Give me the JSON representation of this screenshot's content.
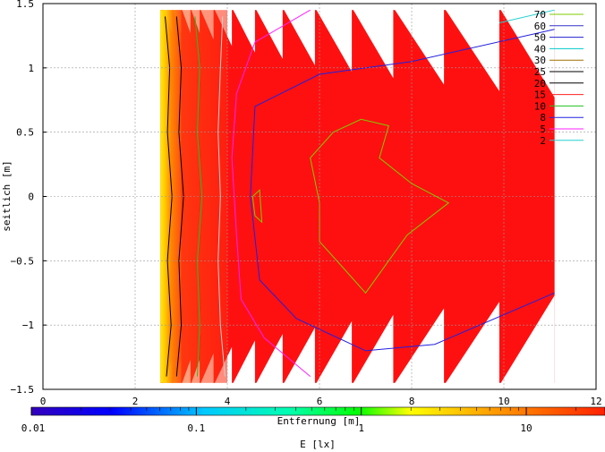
{
  "chart_data": {
    "type": "heatmap",
    "xlabel": "Entfernung [m]",
    "ylabel": "seitlich [m]",
    "colorbar_label": "E [lx]",
    "xlim": [
      0,
      12
    ],
    "ylim": [
      -1.5,
      1.5
    ],
    "x_ticks": [
      "0",
      "2",
      "4",
      "6",
      "8",
      "10",
      "12"
    ],
    "y_ticks": [
      "1.5",
      "1",
      "0.5",
      "0",
      "-0.5",
      "-1",
      "-1.5"
    ],
    "colorbar_scale": "log",
    "colorbar_range": [
      0.01,
      30
    ],
    "colorbar_ticks": [
      "0.01",
      "0.1",
      "1",
      "10"
    ],
    "grid": true,
    "legend_position": "top-right",
    "contour_levels": [
      {
        "label": "70",
        "color": "#7ccd00"
      },
      {
        "label": "60",
        "color": "#3232c8"
      },
      {
        "label": "50",
        "color": "#2020d0"
      },
      {
        "label": "40",
        "color": "#00c8c8"
      },
      {
        "label": "30",
        "color": "#a07000"
      },
      {
        "label": "25",
        "color": "#000000"
      },
      {
        "label": "20",
        "color": "#000000"
      },
      {
        "label": "15",
        "color": "#ff2020"
      },
      {
        "label": "10",
        "color": "#20c020"
      },
      {
        "label": "8",
        "color": "#2020e0"
      },
      {
        "label": "5",
        "color": "#ff20ff"
      },
      {
        "label": "2",
        "color": "#20d0d0"
      }
    ],
    "fill_color": "#ff1010"
  }
}
